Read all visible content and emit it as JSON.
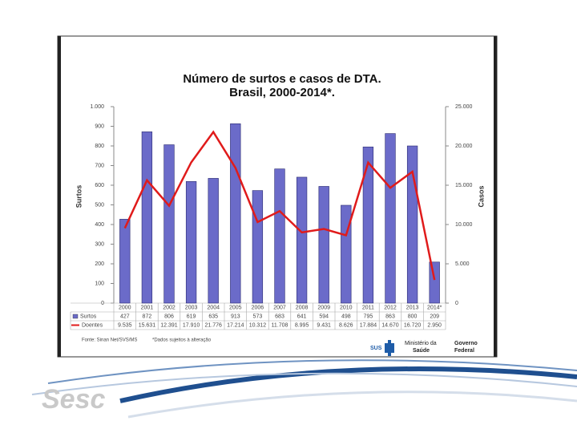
{
  "chart_data": {
    "type": "bar-line",
    "title": "Número de surtos e casos de DTA.",
    "subtitle": "Brasil, 2000-2014*.",
    "categories": [
      "2000",
      "2001",
      "2002",
      "2003",
      "2004",
      "2005",
      "2006",
      "2007",
      "2008",
      "2009",
      "2010",
      "2011",
      "2012",
      "2013",
      "2014*"
    ],
    "series": [
      {
        "name": "Surtos",
        "color": "#6b6bc9",
        "values": [
          427,
          872,
          806,
          619,
          635,
          913,
          573,
          683,
          641,
          594,
          498,
          795,
          863,
          800,
          209
        ]
      },
      {
        "name": "Doentes",
        "color": "#e01b1b",
        "axis": "y2",
        "values": [
          9535,
          15631,
          12391,
          17910,
          21776,
          17214,
          10312,
          11708,
          8995,
          9431,
          8626,
          17884,
          14670,
          16720,
          2950
        ],
        "value_labels": [
          "9.535",
          "15.631",
          "12.391",
          "17.910",
          "21.776",
          "17.214",
          "10.312",
          "11.708",
          "8.995",
          "9.431",
          "8.626",
          "17.884",
          "14.670",
          "16.720",
          "2.950"
        ]
      }
    ],
    "ylabel": "Surtos",
    "y2label": "Casos",
    "ylim": [
      0,
      1000
    ],
    "yticks": [
      0,
      100,
      200,
      300,
      400,
      500,
      600,
      700,
      800,
      900,
      {
        "value": 1000,
        "label": "1.000"
      }
    ],
    "y2lim": [
      0,
      25000
    ],
    "y2ticks": [
      0,
      {
        "value": 5000,
        "label": "5.000"
      },
      {
        "value": 10000,
        "label": "10.000"
      },
      {
        "value": 15000,
        "label": "15.000"
      },
      {
        "value": 20000,
        "label": "20.000"
      },
      {
        "value": 25000,
        "label": "25.000"
      }
    ],
    "source": "Fonte: Sinan Net/SVS/MS",
    "note": "*Dados sujeitos à alteração"
  },
  "logos": {
    "sus": "SUS",
    "ministry": [
      "Ministério da",
      "Saúde"
    ],
    "government": [
      "Governo",
      "Federal"
    ],
    "sesc": "Sesc"
  }
}
